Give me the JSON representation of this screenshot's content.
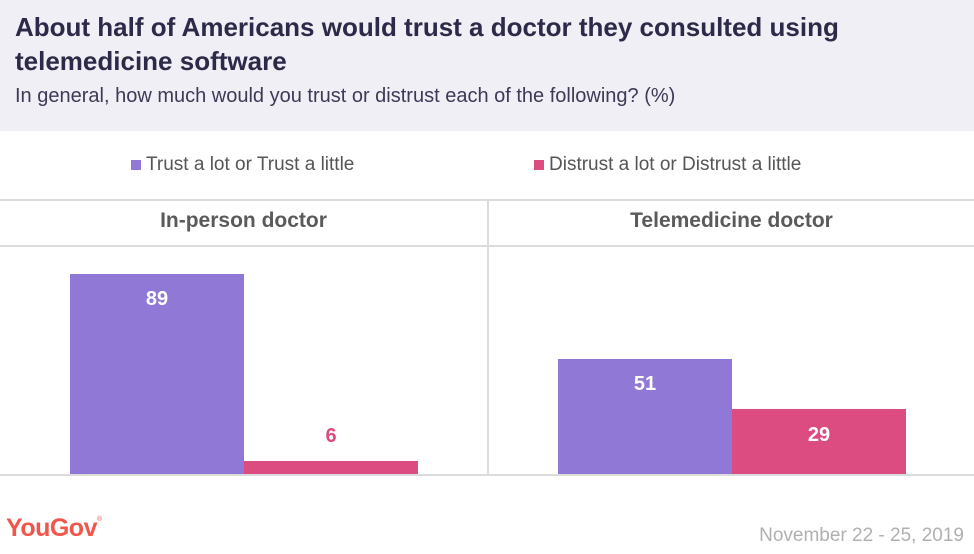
{
  "header": {
    "title": "About half of Americans would trust a doctor they consulted using telemedicine software",
    "subtitle": "In general, how much would you trust or distrust each of the following? (%)"
  },
  "footer": {
    "logo": "YouGov",
    "logo_mark": "®",
    "date": "November 22 - 25, 2019"
  },
  "colors": {
    "trust": "#9078d6",
    "distrust": "#dc4c80",
    "header_bg": "#f0eff5",
    "logo": "#f0564a"
  },
  "chart_data": {
    "type": "bar",
    "title": "About half of Americans would trust a doctor they consulted using telemedicine software",
    "subtitle": "In general, how much would you trust or distrust each of the following? (%)",
    "legend": [
      "Trust a lot or Trust a little",
      "Distrust a lot or Distrust a little"
    ],
    "legend_position": "top",
    "categories": [
      "In-person doctor",
      "Telemedicine doctor"
    ],
    "series": [
      {
        "name": "Trust a lot or Trust a little",
        "values": [
          89,
          51
        ],
        "color": "#9078d6"
      },
      {
        "name": "Distrust a lot or Distrust a little",
        "values": [
          6,
          29
        ],
        "color": "#dc4c80"
      }
    ],
    "ylim": [
      0,
      100
    ],
    "grid": false,
    "xlabel": "",
    "ylabel": ""
  }
}
